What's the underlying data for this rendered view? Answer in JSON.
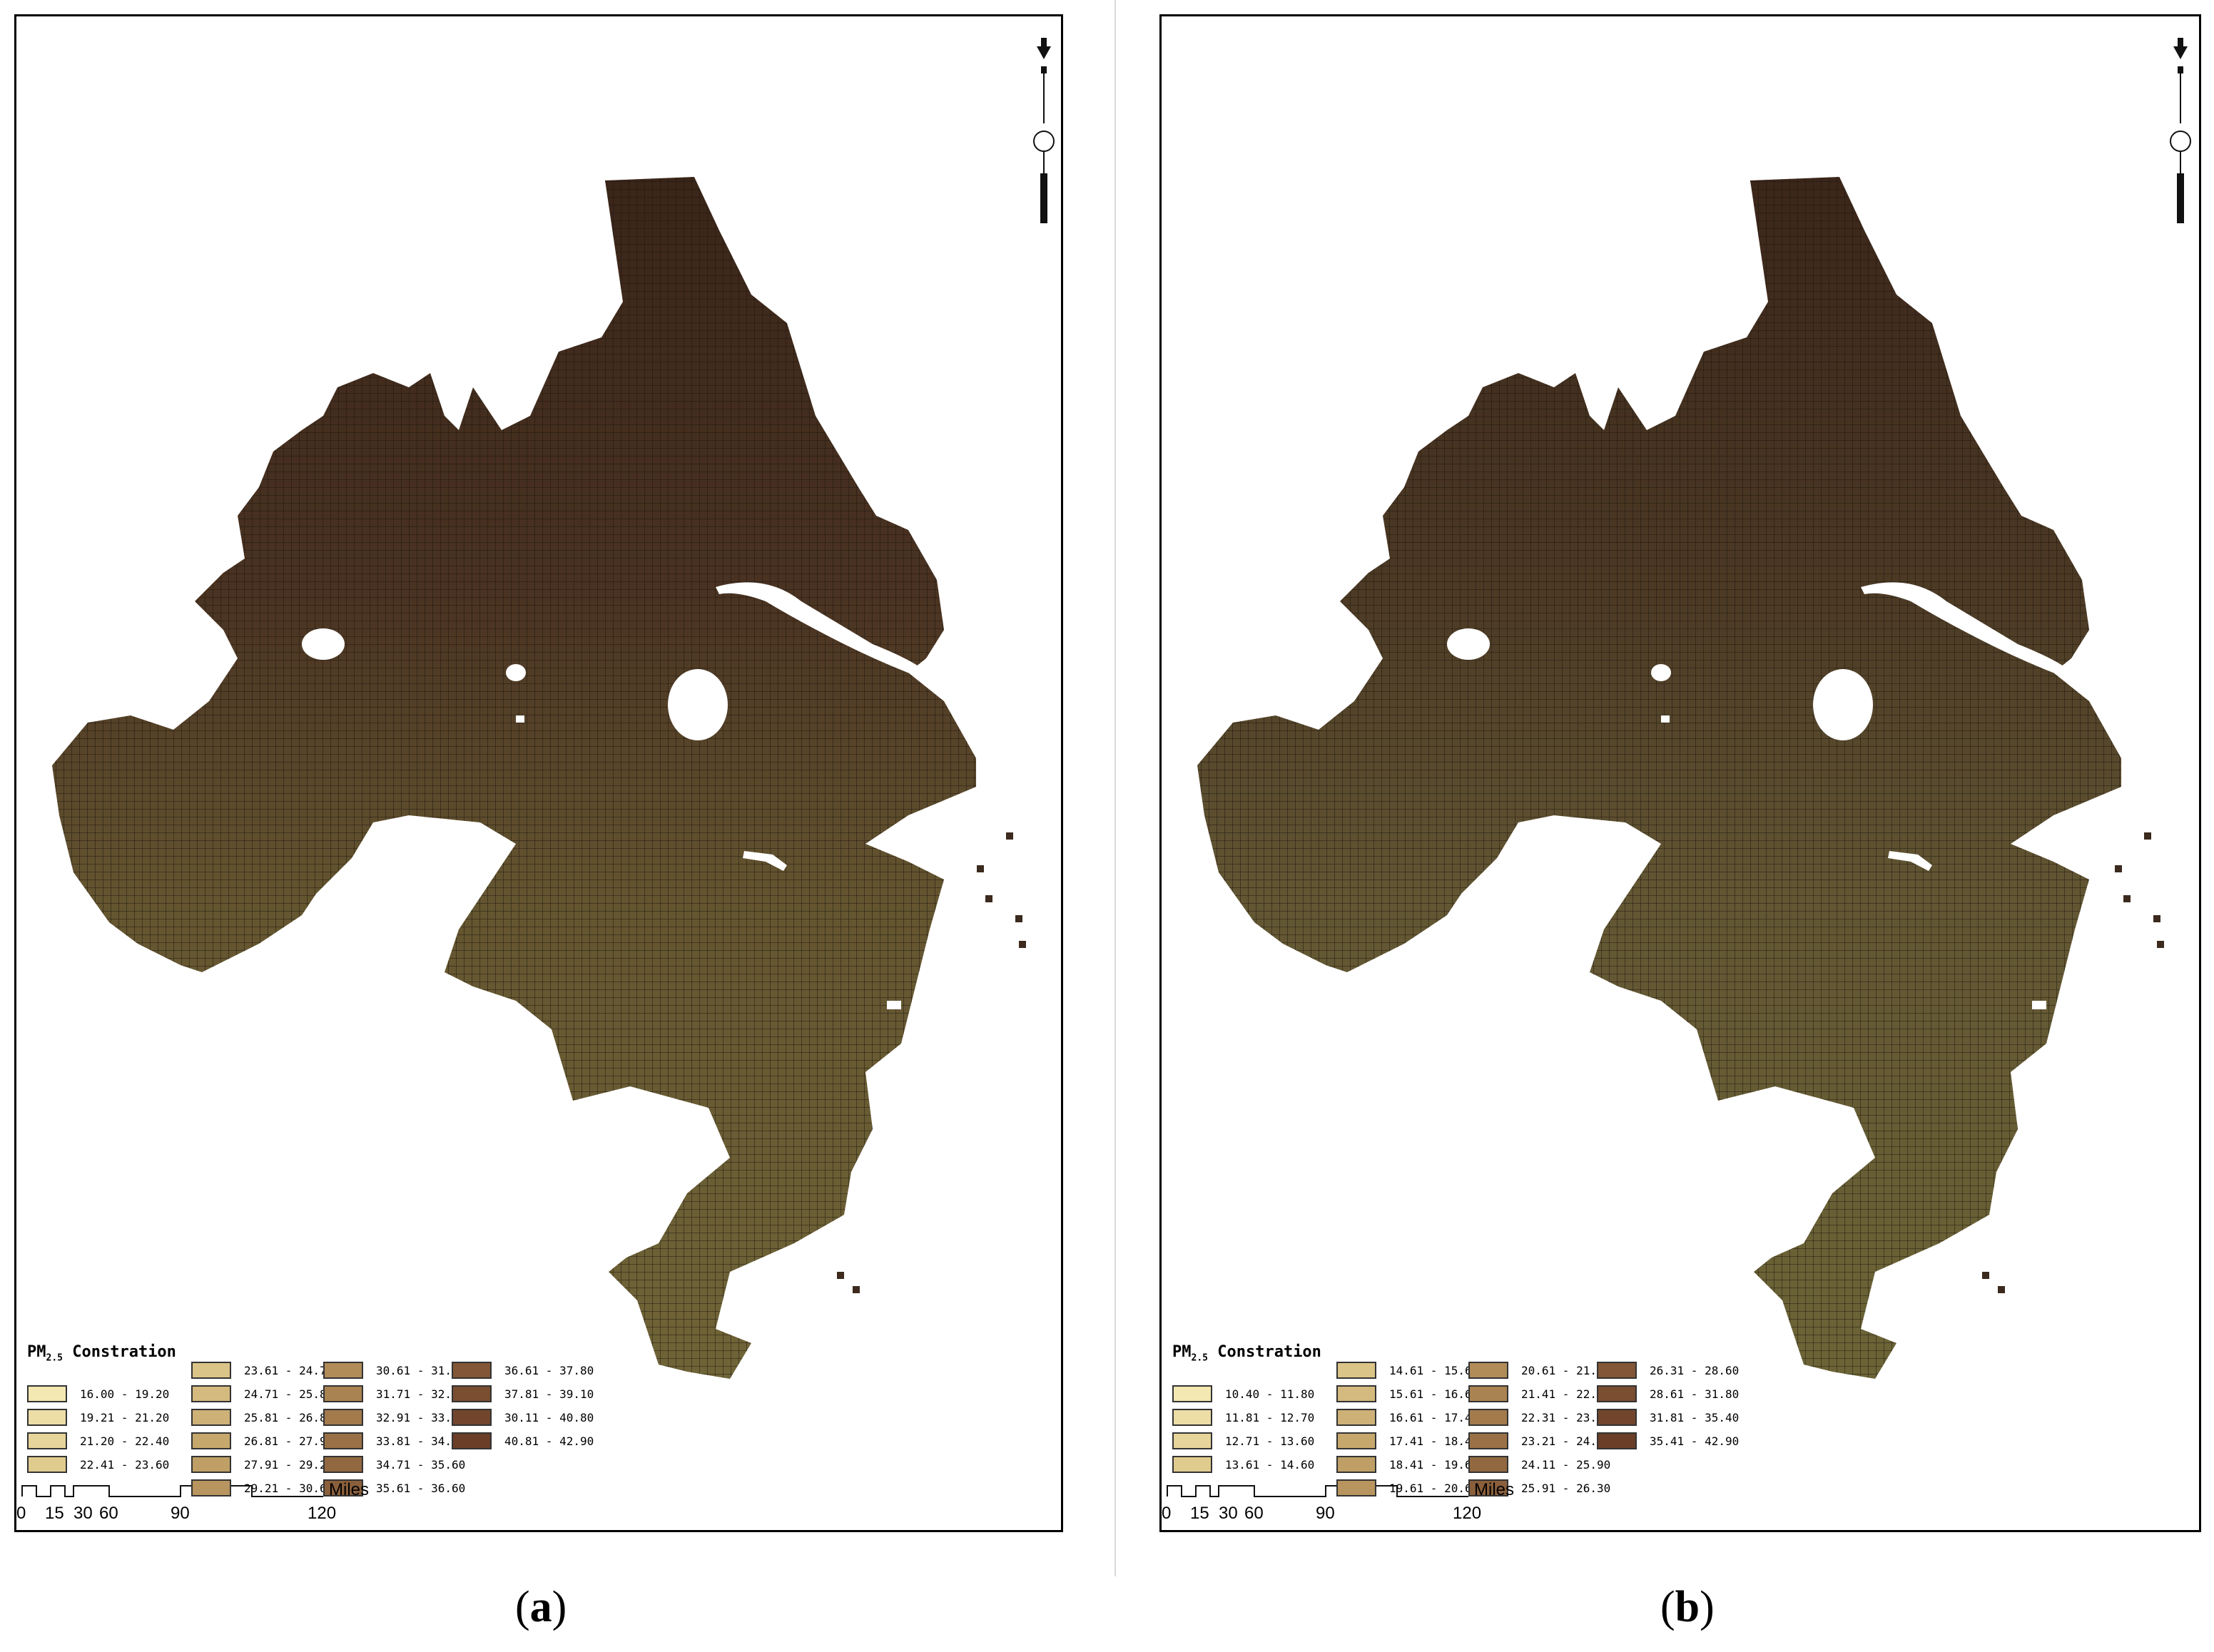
{
  "panels": [
    {
      "id": "a",
      "caption_letter": "a",
      "legend": {
        "title_main": "PM",
        "title_sub": "2.5",
        "title_rest": " Constration",
        "classes": [
          {
            "label": "16.00 - 19.20",
            "color": "#f3e7b2"
          },
          {
            "label": "19.21 - 21.20",
            "color": "#eddda6"
          },
          {
            "label": "21.20 - 22.40",
            "color": "#e6d49a"
          },
          {
            "label": "22.41 - 23.60",
            "color": "#e0cb8f"
          },
          {
            "label": "23.61 - 24.70",
            "color": "#dbc487"
          },
          {
            "label": "24.71 - 25.80",
            "color": "#d4ba7e"
          },
          {
            "label": "25.81 - 26.80",
            "color": "#cdb176"
          },
          {
            "label": "26.81 - 27.90",
            "color": "#c6a86d"
          },
          {
            "label": "27.91 - 29.20",
            "color": "#bf9f66"
          },
          {
            "label": "29.21 - 30.60",
            "color": "#b8955f"
          },
          {
            "label": "30.61 - 31.70",
            "color": "#b18c58"
          },
          {
            "label": "31.71 - 32.90",
            "color": "#aa8352"
          },
          {
            "label": "32.91 - 33.80",
            "color": "#a27a4c"
          },
          {
            "label": "33.81 - 34.70",
            "color": "#9a7146"
          },
          {
            "label": "34.71 - 35.60",
            "color": "#926841"
          },
          {
            "label": "35.61 - 36.60",
            "color": "#8a5f3b"
          },
          {
            "label": "36.61 - 37.80",
            "color": "#825636"
          },
          {
            "label": "37.81 - 39.10",
            "color": "#7a4e31"
          },
          {
            "label": "30.11 - 40.80",
            "color": "#72462c"
          },
          {
            "label": "40.81 - 42.90",
            "color": "#6a3e27"
          }
        ]
      }
    },
    {
      "id": "b",
      "caption_letter": "b",
      "legend": {
        "title_main": "PM",
        "title_sub": "2.5",
        "title_rest": " Constration",
        "classes": [
          {
            "label": "10.40 - 11.80",
            "color": "#f3e7b2"
          },
          {
            "label": "11.81 - 12.70",
            "color": "#eddda6"
          },
          {
            "label": "12.71 - 13.60",
            "color": "#e6d49a"
          },
          {
            "label": "13.61 - 14.60",
            "color": "#e0cb8f"
          },
          {
            "label": "14.61 - 15.60",
            "color": "#dbc487"
          },
          {
            "label": "15.61 - 16.60",
            "color": "#d4ba7e"
          },
          {
            "label": "16.61 - 17.40",
            "color": "#cdb176"
          },
          {
            "label": "17.41 - 18.40",
            "color": "#c6a86d"
          },
          {
            "label": "18.41 - 19.60",
            "color": "#bf9f66"
          },
          {
            "label": "19.61 - 20.60",
            "color": "#b8955f"
          },
          {
            "label": "20.61 - 21.40",
            "color": "#b18c58"
          },
          {
            "label": "21.41 - 22.30",
            "color": "#aa8352"
          },
          {
            "label": "22.31 - 23.20",
            "color": "#a27a4c"
          },
          {
            "label": "23.21 - 24.10",
            "color": "#9a7146"
          },
          {
            "label": "24.11 - 25.90",
            "color": "#926841"
          },
          {
            "label": "25.91 - 26.30",
            "color": "#8a5f3b"
          },
          {
            "label": "26.31 - 28.60",
            "color": "#825636"
          },
          {
            "label": "28.61 - 31.80",
            "color": "#7a4e31"
          },
          {
            "label": "31.81 - 35.40",
            "color": "#72462c"
          },
          {
            "label": "35.41 - 42.90",
            "color": "#6a3e27"
          }
        ]
      }
    }
  ],
  "scale_bar": {
    "ticks": [
      "0",
      "15",
      "30",
      "60",
      "90",
      "120"
    ],
    "units": "Miles"
  },
  "north_arrow": {
    "label": "N",
    "icon": "north-arrow-icon"
  },
  "colors": {
    "map_north": "#3f2a1e",
    "map_middle": "#5a4a2e",
    "map_south": "#6e6336"
  }
}
